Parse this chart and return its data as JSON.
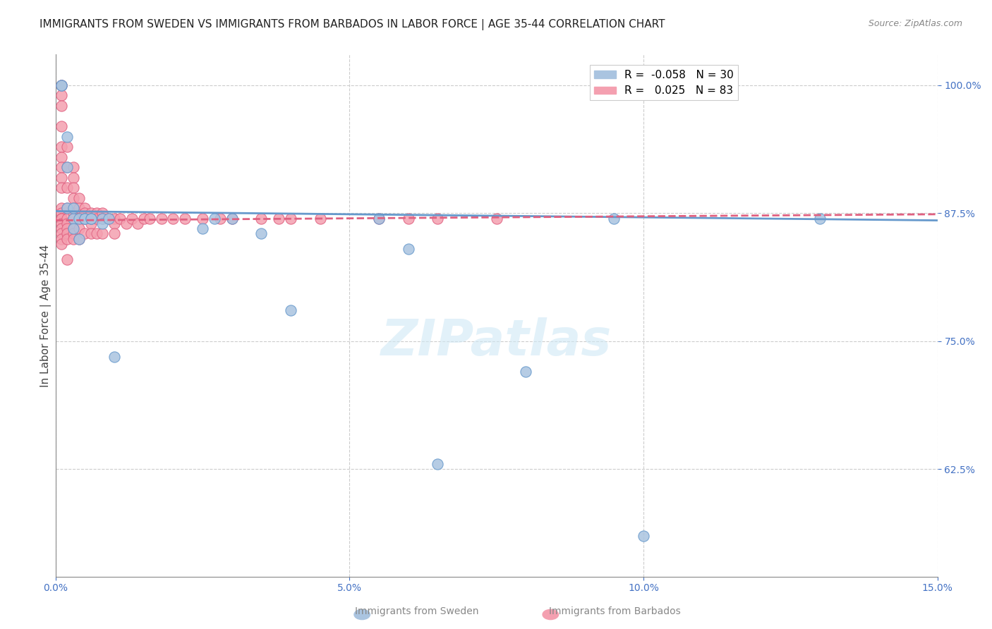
{
  "title": "IMMIGRANTS FROM SWEDEN VS IMMIGRANTS FROM BARBADOS IN LABOR FORCE | AGE 35-44 CORRELATION CHART",
  "source": "Source: ZipAtlas.com",
  "xlabel_bottom": "",
  "ylabel": "In Labor Force | Age 35-44",
  "xlim": [
    0.0,
    0.15
  ],
  "ylim": [
    0.52,
    1.03
  ],
  "xticks": [
    0.0,
    0.05,
    0.1,
    0.15
  ],
  "xticklabels": [
    "0.0%",
    "5.0%",
    "10.0%",
    "15.0%"
  ],
  "yticks": [
    0.625,
    0.75,
    0.875,
    1.0
  ],
  "yticklabels": [
    "62.5%",
    "75.0%",
    "87.5%",
    "100.0%"
  ],
  "grid_color": "#cccccc",
  "background_color": "#ffffff",
  "sweden_color": "#aac4e0",
  "sweden_edge_color": "#6699cc",
  "barbados_color": "#f4a0b0",
  "barbados_edge_color": "#e06080",
  "sweden_R": -0.058,
  "sweden_N": 30,
  "barbados_R": 0.025,
  "barbados_N": 83,
  "watermark": "ZIPatlas",
  "legend_sweden_label": "R =  -0.058   N = 30",
  "legend_barbados_label": "R =   0.025   N = 83",
  "sweden_x": [
    0.001,
    0.001,
    0.002,
    0.002,
    0.002,
    0.003,
    0.003,
    0.003,
    0.004,
    0.004,
    0.005,
    0.005,
    0.006,
    0.006,
    0.008,
    0.008,
    0.009,
    0.01,
    0.025,
    0.027,
    0.03,
    0.035,
    0.04,
    0.055,
    0.06,
    0.065,
    0.08,
    0.095,
    0.1,
    0.13
  ],
  "sweden_y": [
    1.0,
    1.0,
    0.95,
    0.88,
    0.92,
    0.87,
    0.88,
    0.86,
    0.85,
    0.87,
    0.87,
    0.87,
    0.87,
    0.87,
    0.87,
    0.865,
    0.87,
    0.735,
    0.86,
    0.87,
    0.87,
    0.855,
    0.78,
    0.87,
    0.84,
    0.63,
    0.72,
    0.87,
    0.56,
    0.87
  ],
  "barbados_x": [
    0.001,
    0.001,
    0.001,
    0.001,
    0.001,
    0.001,
    0.001,
    0.001,
    0.001,
    0.001,
    0.001,
    0.001,
    0.001,
    0.001,
    0.001,
    0.001,
    0.001,
    0.001,
    0.001,
    0.001,
    0.002,
    0.002,
    0.002,
    0.002,
    0.002,
    0.002,
    0.002,
    0.002,
    0.002,
    0.002,
    0.003,
    0.003,
    0.003,
    0.003,
    0.003,
    0.003,
    0.003,
    0.003,
    0.003,
    0.003,
    0.004,
    0.004,
    0.004,
    0.004,
    0.004,
    0.005,
    0.005,
    0.005,
    0.005,
    0.006,
    0.006,
    0.006,
    0.006,
    0.007,
    0.007,
    0.007,
    0.008,
    0.008,
    0.008,
    0.009,
    0.01,
    0.01,
    0.01,
    0.011,
    0.012,
    0.013,
    0.014,
    0.015,
    0.016,
    0.018,
    0.02,
    0.022,
    0.025,
    0.028,
    0.03,
    0.035,
    0.038,
    0.04,
    0.045,
    0.055,
    0.06,
    0.065,
    0.075
  ],
  "barbados_y": [
    1.0,
    1.0,
    0.99,
    0.98,
    0.96,
    0.94,
    0.93,
    0.92,
    0.91,
    0.9,
    0.88,
    0.875,
    0.87,
    0.87,
    0.87,
    0.865,
    0.86,
    0.855,
    0.85,
    0.845,
    0.94,
    0.92,
    0.9,
    0.88,
    0.87,
    0.865,
    0.86,
    0.855,
    0.85,
    0.83,
    0.92,
    0.91,
    0.9,
    0.89,
    0.88,
    0.875,
    0.87,
    0.86,
    0.855,
    0.85,
    0.89,
    0.88,
    0.87,
    0.86,
    0.85,
    0.88,
    0.875,
    0.87,
    0.855,
    0.875,
    0.87,
    0.865,
    0.855,
    0.875,
    0.87,
    0.855,
    0.875,
    0.87,
    0.855,
    0.87,
    0.87,
    0.865,
    0.855,
    0.87,
    0.865,
    0.87,
    0.865,
    0.87,
    0.87,
    0.87,
    0.87,
    0.87,
    0.87,
    0.87,
    0.87,
    0.87,
    0.87,
    0.87,
    0.87,
    0.87,
    0.87,
    0.87,
    0.87
  ],
  "title_fontsize": 11,
  "axis_label_fontsize": 11,
  "tick_fontsize": 10,
  "tick_color": "#4472c4",
  "title_color": "#222222"
}
